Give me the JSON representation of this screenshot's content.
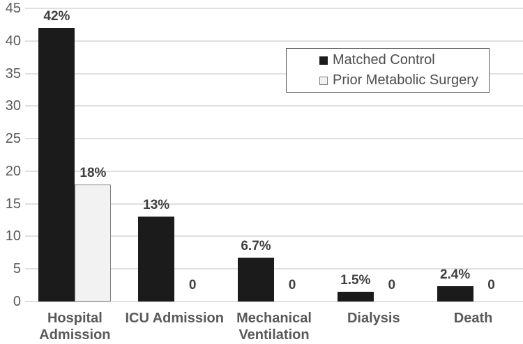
{
  "chart_data": {
    "type": "bar",
    "categories": [
      "Hospital Admission",
      "ICU Admission",
      "Mechanical Ventilation",
      "Dialysis",
      "Death"
    ],
    "series": [
      {
        "name": "Matched Control",
        "values": [
          42,
          13,
          6.7,
          1.5,
          2.4
        ],
        "labels": [
          "42%",
          "13%",
          "6.7%",
          "1.5%",
          "2.4%"
        ],
        "color": "#1b1b1b",
        "border": "#1b1b1b"
      },
      {
        "name": "Prior Metabolic Surgery",
        "values": [
          18,
          0,
          0,
          0,
          0
        ],
        "labels": [
          "18%",
          "0",
          "0",
          "0",
          "0"
        ],
        "color": "#f2f2f2",
        "border": "#7f7f7f"
      }
    ],
    "title": "",
    "xlabel": "",
    "ylabel": "",
    "ylim": [
      0,
      45
    ],
    "ytick_step": 5,
    "yticks": [
      0,
      5,
      10,
      15,
      20,
      25,
      30,
      35,
      40,
      45
    ],
    "grid": true,
    "legend_position": "top-right",
    "colors": {
      "gridline": "#e0e0e0",
      "axis_text": "#595959",
      "data_label_text": "#3f3f3f",
      "legend_border": "#595959",
      "background": "#ffffff"
    }
  }
}
